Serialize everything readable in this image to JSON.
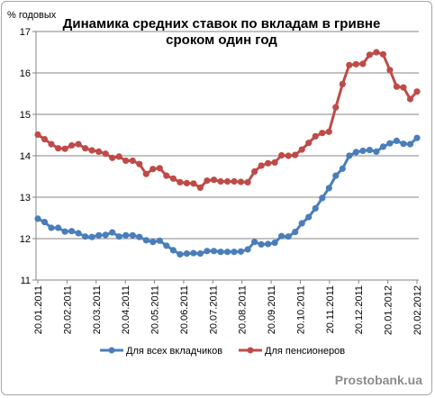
{
  "chart_data": {
    "type": "line",
    "title_line1": "Динамика средних ставок по вкладам в гривне",
    "title_line2": "сроком один год",
    "ylabel": "% годовых",
    "ylim": [
      11,
      17
    ],
    "yticks": [
      "11",
      "12",
      "13",
      "14",
      "15",
      "16",
      "17"
    ],
    "grid": "horizontal",
    "legend_position": "bottom",
    "x_tick_labels": [
      "20.01.2011",
      "20.02.2011",
      "20.03.2011",
      "20.04.2011",
      "20.05.2011",
      "20.06.2011",
      "20.07.2011",
      "20.08.2011",
      "20.09.2011",
      "20.10.2011",
      "20.11.2011",
      "20.12.2011",
      "20.01.2012",
      "20.02.2012"
    ],
    "series": [
      {
        "name": "Для всех вкладчиков",
        "color": "#4a7ebb",
        "values": [
          12.48,
          12.4,
          12.26,
          12.26,
          12.17,
          12.18,
          12.13,
          12.05,
          12.04,
          12.08,
          12.09,
          12.15,
          12.05,
          12.08,
          12.08,
          12.04,
          11.96,
          11.92,
          11.95,
          11.83,
          11.72,
          11.62,
          11.64,
          11.65,
          11.64,
          11.7,
          11.7,
          11.68,
          11.68,
          11.68,
          11.69,
          11.74,
          11.92,
          11.86,
          11.87,
          11.9,
          12.06,
          12.05,
          12.16,
          12.37,
          12.52,
          12.73,
          12.98,
          13.22,
          13.52,
          13.69,
          14.0,
          14.09,
          14.12,
          14.14,
          14.1,
          14.22,
          14.3,
          14.36,
          14.29,
          14.28,
          14.43
        ]
      },
      {
        "name": "Для пенсионеров",
        "color": "#be4b48",
        "values": [
          14.51,
          14.4,
          14.28,
          14.18,
          14.17,
          14.25,
          14.28,
          14.18,
          14.13,
          14.1,
          14.05,
          13.95,
          13.98,
          13.88,
          13.88,
          13.8,
          13.56,
          13.68,
          13.7,
          13.52,
          13.45,
          13.36,
          13.34,
          13.33,
          13.23,
          13.4,
          13.42,
          13.38,
          13.38,
          13.38,
          13.37,
          13.36,
          13.62,
          13.76,
          13.82,
          13.84,
          14.01,
          14.0,
          14.02,
          14.15,
          14.31,
          14.47,
          14.55,
          14.58,
          15.17,
          15.73,
          16.19,
          16.21,
          16.22,
          16.44,
          16.5,
          16.45,
          16.07,
          15.67,
          15.65,
          15.37,
          15.55
        ]
      }
    ]
  },
  "watermark": "Prostobank.ua"
}
